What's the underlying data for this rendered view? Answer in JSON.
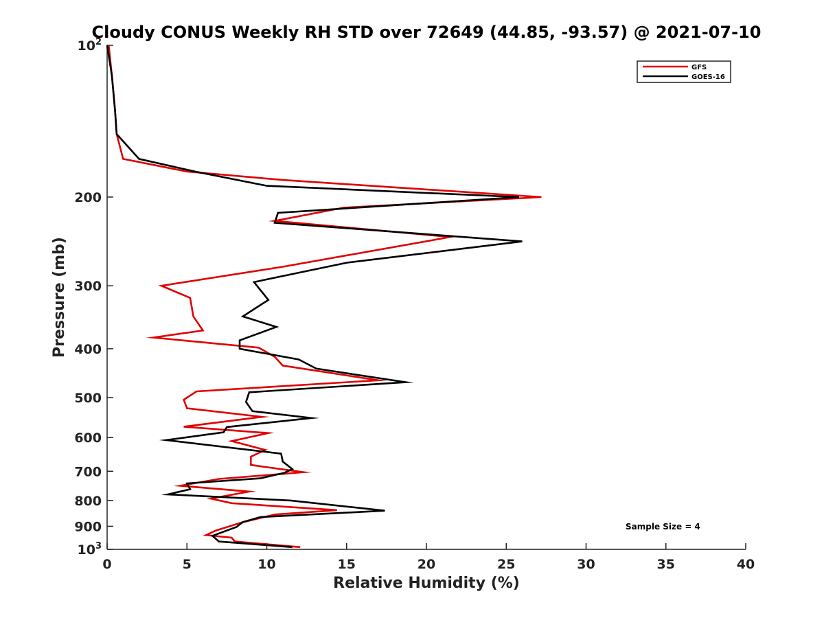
{
  "chart_data": {
    "type": "line",
    "title": "Cloudy CONUS Weekly RH STD over 72649 (44.85, -93.57) @ 2021-07-10",
    "xlabel": "Relative Humidity (%)",
    "ylabel": "Pressure (mb)",
    "xlim": [
      0,
      40
    ],
    "ylim": [
      100,
      1000
    ],
    "yscale": "log",
    "y_reversed": true,
    "grid": false,
    "legend_position": "top-right",
    "x_ticks": [
      0,
      5,
      10,
      15,
      20,
      25,
      30,
      35,
      40
    ],
    "y_ticks": [
      {
        "value": 100,
        "label": "10",
        "exponent": "2"
      },
      {
        "value": 200,
        "label": "200",
        "exponent": ""
      },
      {
        "value": 300,
        "label": "300",
        "exponent": ""
      },
      {
        "value": 400,
        "label": "400",
        "exponent": ""
      },
      {
        "value": 500,
        "label": "500",
        "exponent": ""
      },
      {
        "value": 600,
        "label": "600",
        "exponent": ""
      },
      {
        "value": 700,
        "label": "700",
        "exponent": ""
      },
      {
        "value": 800,
        "label": "800",
        "exponent": ""
      },
      {
        "value": 900,
        "label": "900",
        "exponent": ""
      },
      {
        "value": 1000,
        "label": "10",
        "exponent": "3"
      }
    ],
    "annotation": "Sample Size = 4",
    "series": [
      {
        "name": "GFS",
        "color": "#e00000",
        "points": [
          [
            0.1,
            100
          ],
          [
            0.3,
            115
          ],
          [
            0.5,
            135
          ],
          [
            0.6,
            150
          ],
          [
            1.0,
            168
          ],
          [
            5.0,
            178
          ],
          [
            11.0,
            185
          ],
          [
            27.2,
            200
          ],
          [
            14.8,
            210
          ],
          [
            10.5,
            223
          ],
          [
            21.5,
            240
          ],
          [
            11.0,
            275
          ],
          [
            3.4,
            300
          ],
          [
            5.2,
            317
          ],
          [
            5.4,
            345
          ],
          [
            6.0,
            368
          ],
          [
            2.9,
            380
          ],
          [
            9.5,
            398
          ],
          [
            10.5,
            415
          ],
          [
            11.0,
            432
          ],
          [
            17.0,
            462
          ],
          [
            5.6,
            486
          ],
          [
            4.8,
            505
          ],
          [
            5.0,
            525
          ],
          [
            9.7,
            546
          ],
          [
            4.8,
            571
          ],
          [
            10.1,
            588
          ],
          [
            7.8,
            610
          ],
          [
            9.9,
            635
          ],
          [
            9.0,
            655
          ],
          [
            9.0,
            680
          ],
          [
            12.3,
            703
          ],
          [
            7.0,
            725
          ],
          [
            4.6,
            748
          ],
          [
            8.9,
            768
          ],
          [
            6.5,
            793
          ],
          [
            7.8,
            810
          ],
          [
            14.4,
            836
          ],
          [
            10.5,
            853
          ],
          [
            8.4,
            885
          ],
          [
            6.8,
            918
          ],
          [
            6.2,
            937
          ],
          [
            7.8,
            948
          ],
          [
            8.0,
            965
          ],
          [
            12.1,
            990
          ]
        ]
      },
      {
        "name": "GOES-16",
        "color": "#000000",
        "points": [
          [
            0.0,
            100
          ],
          [
            0.3,
            115
          ],
          [
            0.5,
            135
          ],
          [
            0.6,
            150
          ],
          [
            2.0,
            168
          ],
          [
            5.5,
            178
          ],
          [
            10.0,
            190
          ],
          [
            25.8,
            200
          ],
          [
            10.7,
            215
          ],
          [
            10.5,
            225
          ],
          [
            26.0,
            245
          ],
          [
            15.0,
            270
          ],
          [
            9.2,
            295
          ],
          [
            10.1,
            320
          ],
          [
            8.5,
            345
          ],
          [
            10.6,
            362
          ],
          [
            8.3,
            385
          ],
          [
            8.3,
            400
          ],
          [
            12.0,
            420
          ],
          [
            13.1,
            438
          ],
          [
            18.7,
            466
          ],
          [
            8.9,
            488
          ],
          [
            8.7,
            510
          ],
          [
            9.1,
            532
          ],
          [
            12.8,
            549
          ],
          [
            7.5,
            572
          ],
          [
            7.3,
            586
          ],
          [
            3.7,
            607
          ],
          [
            10.9,
            646
          ],
          [
            11.0,
            670
          ],
          [
            11.6,
            693
          ],
          [
            11.1,
            705
          ],
          [
            9.6,
            723
          ],
          [
            5.0,
            740
          ],
          [
            5.2,
            760
          ],
          [
            3.8,
            778
          ],
          [
            11.5,
            800
          ],
          [
            17.4,
            838
          ],
          [
            9.6,
            863
          ],
          [
            8.5,
            883
          ],
          [
            8.1,
            903
          ],
          [
            6.6,
            940
          ],
          [
            7.0,
            965
          ],
          [
            11.6,
            990
          ]
        ]
      }
    ]
  }
}
